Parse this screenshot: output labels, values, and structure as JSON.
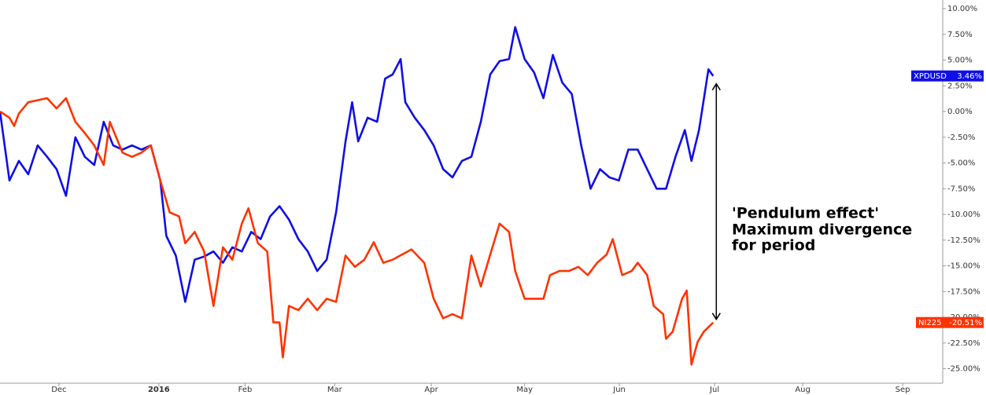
{
  "chart_data": {
    "type": "line",
    "annotation": [
      "'Pendulum effect'",
      "Maximum divergence",
      "for period"
    ],
    "xlim": [
      0,
      200
    ],
    "ylim": [
      -26.41,
      10.84
    ],
    "xticks": [
      {
        "value": 12.5,
        "label": "Dec"
      },
      {
        "value": 33.7,
        "label": "2016"
      },
      {
        "value": 52,
        "label": "Feb"
      },
      {
        "value": 71,
        "label": "Mar"
      },
      {
        "value": 91.5,
        "label": "Apr"
      },
      {
        "value": 111.3,
        "label": "May"
      },
      {
        "value": 131.4,
        "label": "Jun"
      },
      {
        "value": 151.6,
        "label": "Jul"
      },
      {
        "value": 170.3,
        "label": "Aug"
      },
      {
        "value": 191.5,
        "label": "Sep"
      }
    ],
    "yticks": [
      {
        "value": 10,
        "label": "10.00%"
      },
      {
        "value": 7.5,
        "label": "7.50%"
      },
      {
        "value": 5,
        "label": "5.00%"
      },
      {
        "value": 2.5,
        "label": "2.50%"
      },
      {
        "value": 0,
        "label": "0.00%"
      },
      {
        "value": -2.5,
        "label": "-2.50%"
      },
      {
        "value": -5,
        "label": "-5.00%"
      },
      {
        "value": -7.5,
        "label": "-7.50%"
      },
      {
        "value": -10,
        "label": "-10.00%"
      },
      {
        "value": -12.5,
        "label": "-12.50%"
      },
      {
        "value": -15,
        "label": "-15.00%"
      },
      {
        "value": -17.5,
        "label": "-17.50%"
      },
      {
        "value": -20,
        "label": "-20.00%"
      },
      {
        "value": -22.5,
        "label": "-22.50%"
      },
      {
        "value": -25,
        "label": "-25.00%"
      }
    ],
    "series": [
      {
        "name": "XPDUSD",
        "color": "#0f0fe6",
        "end_label": "3.46%",
        "x": [
          0,
          2,
          4,
          6,
          8,
          10,
          12,
          14,
          16,
          18,
          20,
          22,
          24,
          26,
          28,
          30,
          32,
          34,
          35.3,
          37.3,
          39.3,
          41.3,
          43.3,
          45.3,
          47.3,
          49.3,
          51.3,
          53.3,
          55.3,
          57.3,
          59.3,
          61.3,
          63.3,
          65.3,
          67.3,
          69.3,
          71.3,
          73.3,
          74.7,
          76,
          78,
          80,
          81.7,
          83.3,
          85,
          86,
          88,
          90,
          92,
          94,
          96,
          98,
          100,
          102,
          104,
          106,
          108,
          109.3,
          111.3,
          113.3,
          115.3,
          117.3,
          119.3,
          121.3,
          123.3,
          125.3,
          127.3,
          129.3,
          131.3,
          133.3,
          135.3,
          137.3,
          139.3,
          141.3,
          143.3,
          145.3,
          146.7,
          148.3,
          150.3,
          151.3
        ],
        "values": [
          0,
          -6.7,
          -4.8,
          -6.1,
          -3.3,
          -4.4,
          -5.6,
          -8.2,
          -2.5,
          -4.4,
          -5.2,
          -1.0,
          -3.3,
          -3.7,
          -3.3,
          -3.7,
          -3.3,
          -6.7,
          -12.1,
          -14.0,
          -18.5,
          -14.4,
          -14.1,
          -13.6,
          -14.7,
          -13.2,
          -13.6,
          -11.7,
          -12.4,
          -10.2,
          -9.2,
          -10.5,
          -12.4,
          -13.6,
          -15.5,
          -14.4,
          -9.8,
          -2.9,
          0.9,
          -2.9,
          -0.6,
          -1.0,
          3.2,
          3.6,
          5.1,
          0.9,
          -0.6,
          -1.8,
          -3.3,
          -5.6,
          -6.4,
          -4.8,
          -4.4,
          -1.0,
          3.6,
          4.9,
          5.1,
          8.2,
          5.1,
          3.8,
          1.3,
          5.5,
          2.8,
          1.7,
          -3.3,
          -7.5,
          -5.6,
          -6.4,
          -6.7,
          -3.7,
          -3.7,
          -5.6,
          -7.5,
          -7.5,
          -4.4,
          -1.8,
          -4.8,
          -1.8,
          4.1,
          3.46
        ]
      },
      {
        "name": "NI225",
        "color": "#ff3300",
        "end_label": "-20.51%",
        "x": [
          0,
          2,
          3,
          4,
          6,
          8,
          10,
          12,
          14,
          16,
          18,
          20,
          22,
          23.3,
          26,
          28,
          30,
          32,
          34,
          36,
          38,
          39.3,
          41.3,
          43.3,
          45.3,
          47.3,
          49.3,
          51.3,
          52.7,
          54.7,
          56.7,
          58,
          59.3,
          60,
          61.3,
          63.3,
          65.3,
          67.3,
          69.3,
          71.3,
          73.3,
          75.3,
          77.3,
          79.3,
          81.3,
          83.3,
          85.3,
          87.3,
          90,
          92,
          94,
          96,
          98,
          100,
          102,
          104,
          106,
          108,
          109.3,
          111.3,
          113.3,
          115.3,
          116.7,
          118.7,
          120.7,
          122.7,
          124.7,
          126.7,
          128.7,
          130,
          132,
          134,
          135.3,
          137.3,
          138.7,
          140.7,
          141.3,
          142.7,
          144.7,
          145.7,
          146.7,
          148,
          149.3,
          151.3
        ],
        "values": [
          0,
          -0.6,
          -1.4,
          -0.2,
          0.9,
          1.1,
          1.3,
          0.3,
          1.3,
          -1.0,
          -2.1,
          -3.3,
          -5.2,
          -1.0,
          -4.0,
          -4.4,
          -4.0,
          -3.3,
          -6.7,
          -9.8,
          -10.2,
          -12.8,
          -11.7,
          -13.6,
          -18.9,
          -13.2,
          -14.4,
          -10.9,
          -9.4,
          -12.8,
          -13.6,
          -20.5,
          -20.5,
          -23.9,
          -18.9,
          -19.3,
          -18.2,
          -19.3,
          -18.2,
          -18.5,
          -14.0,
          -15.1,
          -14.4,
          -12.7,
          -14.7,
          -14.4,
          -13.9,
          -13.4,
          -14.7,
          -18.2,
          -20.1,
          -19.7,
          -20.1,
          -14.0,
          -17.0,
          -13.9,
          -10.9,
          -11.7,
          -15.5,
          -18.2,
          -18.2,
          -18.2,
          -15.9,
          -15.5,
          -15.5,
          -15.1,
          -15.9,
          -14.7,
          -13.9,
          -12.4,
          -15.9,
          -15.5,
          -14.7,
          -15.9,
          -18.9,
          -19.7,
          -22.1,
          -21.4,
          -18.2,
          -17.4,
          -24.6,
          -22.4,
          -21.4,
          -20.51
        ]
      }
    ]
  }
}
